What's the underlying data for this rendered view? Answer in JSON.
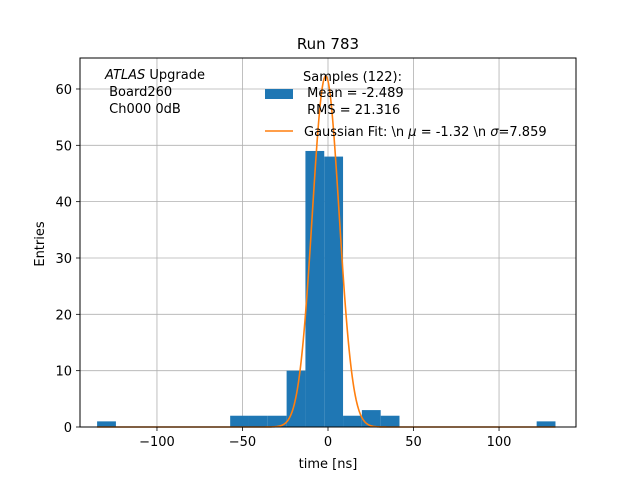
{
  "chart_data": {
    "type": "bar",
    "title": "Run 783",
    "xlabel": "time [ns]",
    "ylabel": "Entries",
    "xlim": [
      -145,
      145
    ],
    "ylim": [
      0,
      65.5
    ],
    "grid": true,
    "x_ticks": [
      {
        "value": -100,
        "label": "−100"
      },
      {
        "value": -50,
        "label": "−50"
      },
      {
        "value": 0,
        "label": "0"
      },
      {
        "value": 50,
        "label": "50"
      },
      {
        "value": 100,
        "label": "100"
      }
    ],
    "y_ticks": [
      {
        "value": 0,
        "label": "0"
      },
      {
        "value": 10,
        "label": "10"
      },
      {
        "value": 20,
        "label": "20"
      },
      {
        "value": 30,
        "label": "30"
      },
      {
        "value": 40,
        "label": "40"
      },
      {
        "value": 50,
        "label": "50"
      },
      {
        "value": 60,
        "label": "60"
      }
    ],
    "annotation": {
      "line1_italic": "ATLAS",
      "line1_rest": " Upgrade",
      "line2": " Board260",
      "line3": " Ch000 0dB"
    },
    "legend": {
      "placement": "top-center",
      "histogram_lines": [
        "Samples (122):",
        " Mean = -2.489",
        " RMS = 21.316"
      ],
      "fit_label_pre": "Gaussian Fit: \\n ",
      "fit_mu_symbol": "μ",
      "fit_label_mid": " = -1.32 \\n ",
      "fit_sigma_symbol": "σ",
      "fit_label_post": "=7.859"
    },
    "series": [
      {
        "kind": "histogram",
        "color": "#1f77b4",
        "bins": [
          {
            "x0": -135,
            "x1": -124,
            "count": 1
          },
          {
            "x0": -57.2,
            "x1": -46.2,
            "count": 2
          },
          {
            "x0": -46.2,
            "x1": -35.2,
            "count": 2
          },
          {
            "x0": -35.2,
            "x1": -24.2,
            "count": 2
          },
          {
            "x0": -24.2,
            "x1": -13.2,
            "count": 10
          },
          {
            "x0": -13.2,
            "x1": -2.2,
            "count": 49
          },
          {
            "x0": -2.2,
            "x1": 8.8,
            "count": 48
          },
          {
            "x0": 8.8,
            "x1": 19.8,
            "count": 2
          },
          {
            "x0": 19.8,
            "x1": 30.8,
            "count": 3
          },
          {
            "x0": 30.8,
            "x1": 41.8,
            "count": 2
          },
          {
            "x0": 122,
            "x1": 133,
            "count": 1
          }
        ]
      },
      {
        "kind": "gaussian",
        "color": "#ff7f0e",
        "amplitude": 62.3,
        "mu": -1.32,
        "sigma": 7.859,
        "x_range": [
          -135,
          133
        ]
      }
    ]
  }
}
